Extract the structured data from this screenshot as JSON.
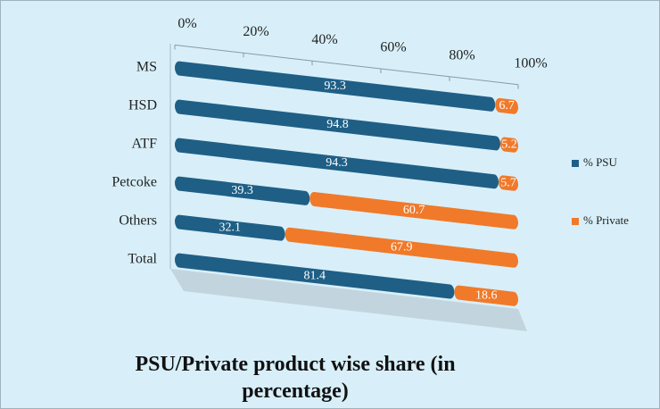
{
  "chart_data": {
    "type": "bar",
    "orientation": "horizontal",
    "stacked": true,
    "title": "PSU/Private product wise share (in percentage)",
    "categories": [
      "MS",
      "HSD",
      "ATF",
      "Petcoke",
      "Others",
      "Total"
    ],
    "series": [
      {
        "name": "% PSU",
        "color": "#1f5f86",
        "values": [
          93.3,
          94.8,
          94.3,
          39.3,
          32.1,
          81.4
        ]
      },
      {
        "name": "% Private",
        "color": "#f07a2a",
        "values": [
          6.7,
          5.2,
          5.7,
          60.7,
          67.9,
          18.6
        ]
      }
    ],
    "xlim": [
      0,
      100
    ],
    "xticks": [
      {
        "value": 0,
        "label": "0%"
      },
      {
        "value": 20,
        "label": "20%"
      },
      {
        "value": 40,
        "label": "40%"
      },
      {
        "value": 60,
        "label": "60%"
      },
      {
        "value": 80,
        "label": "80%"
      },
      {
        "value": 100,
        "label": "100%"
      }
    ],
    "legend": "right"
  }
}
